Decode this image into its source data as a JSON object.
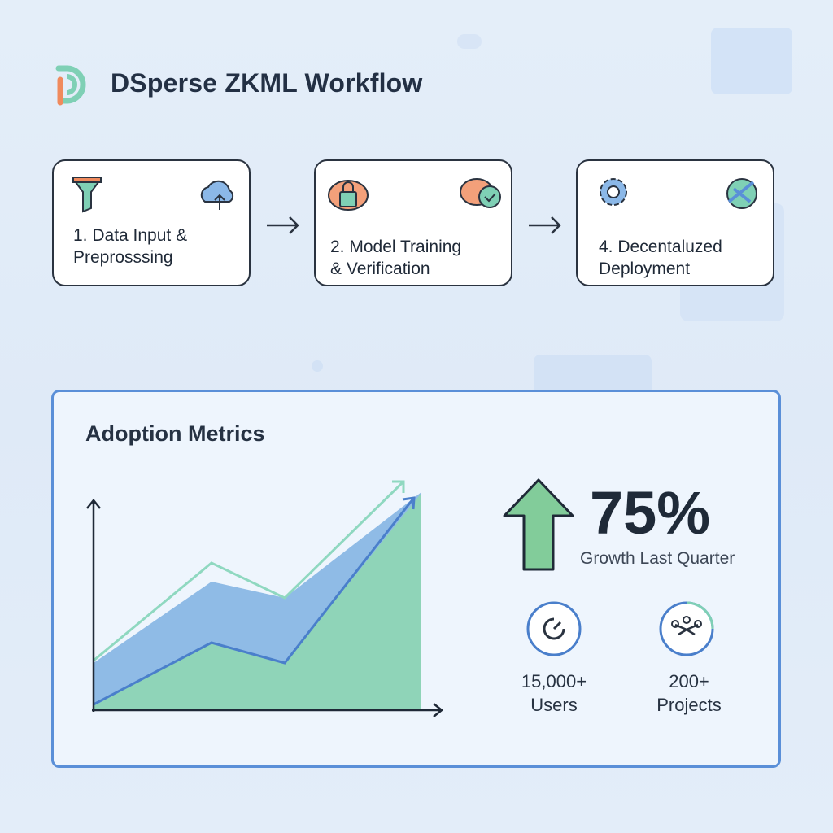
{
  "header": {
    "title": "DSperse ZKML Workflow"
  },
  "steps": [
    {
      "lines": [
        "1. Data Input &",
        "Preprosssing"
      ]
    },
    {
      "lines": [
        "2. Model Training",
        "& Verification"
      ]
    },
    {
      "lines": [
        "4. Decentaluzed",
        "Deployment"
      ]
    }
  ],
  "metrics": {
    "title": "Adoption Metrics",
    "headline": {
      "value": "75%",
      "label": "Growth Last Quarter"
    },
    "stats": [
      {
        "value": "15,000+",
        "label": "Users"
      },
      {
        "value": "200+",
        "label": "Projects"
      }
    ]
  }
}
